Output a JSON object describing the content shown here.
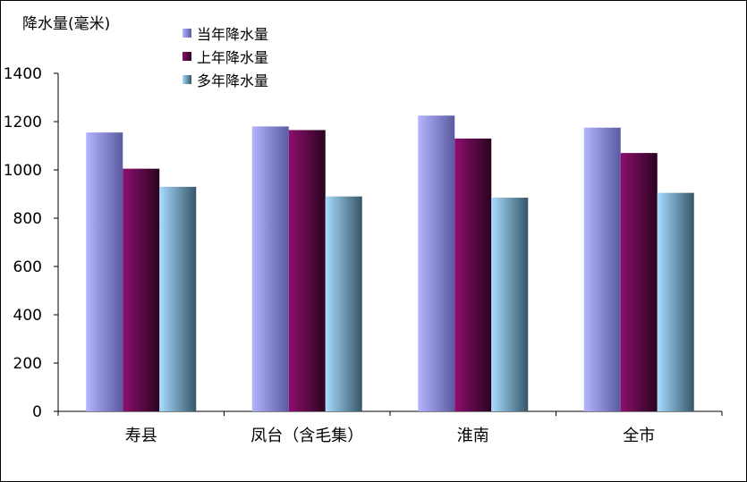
{
  "chart_data": {
    "type": "bar",
    "ylabel": "降水量(毫米)",
    "categories": [
      "寿县",
      "凤台（含毛集）",
      "淮南",
      "全市"
    ],
    "series": [
      {
        "name": "当年降水量",
        "values": [
          1155,
          1180,
          1225,
          1175
        ],
        "color_light": "#b4b4ff",
        "color_dark": "#5a5aa0"
      },
      {
        "name": "上年降水量",
        "values": [
          1005,
          1165,
          1130,
          1070
        ],
        "color_light": "#8c0f6e",
        "color_dark": "#2a0420"
      },
      {
        "name": "多年降水量",
        "values": [
          930,
          890,
          885,
          905
        ],
        "color_light": "#a8dcff",
        "color_dark": "#355668"
      }
    ],
    "ylim": [
      0,
      1400
    ],
    "yticks": [
      "0",
      "200",
      "400",
      "600",
      "800",
      "1000",
      "1200",
      "1400"
    ],
    "grid": false,
    "legend_position": "top-center"
  }
}
